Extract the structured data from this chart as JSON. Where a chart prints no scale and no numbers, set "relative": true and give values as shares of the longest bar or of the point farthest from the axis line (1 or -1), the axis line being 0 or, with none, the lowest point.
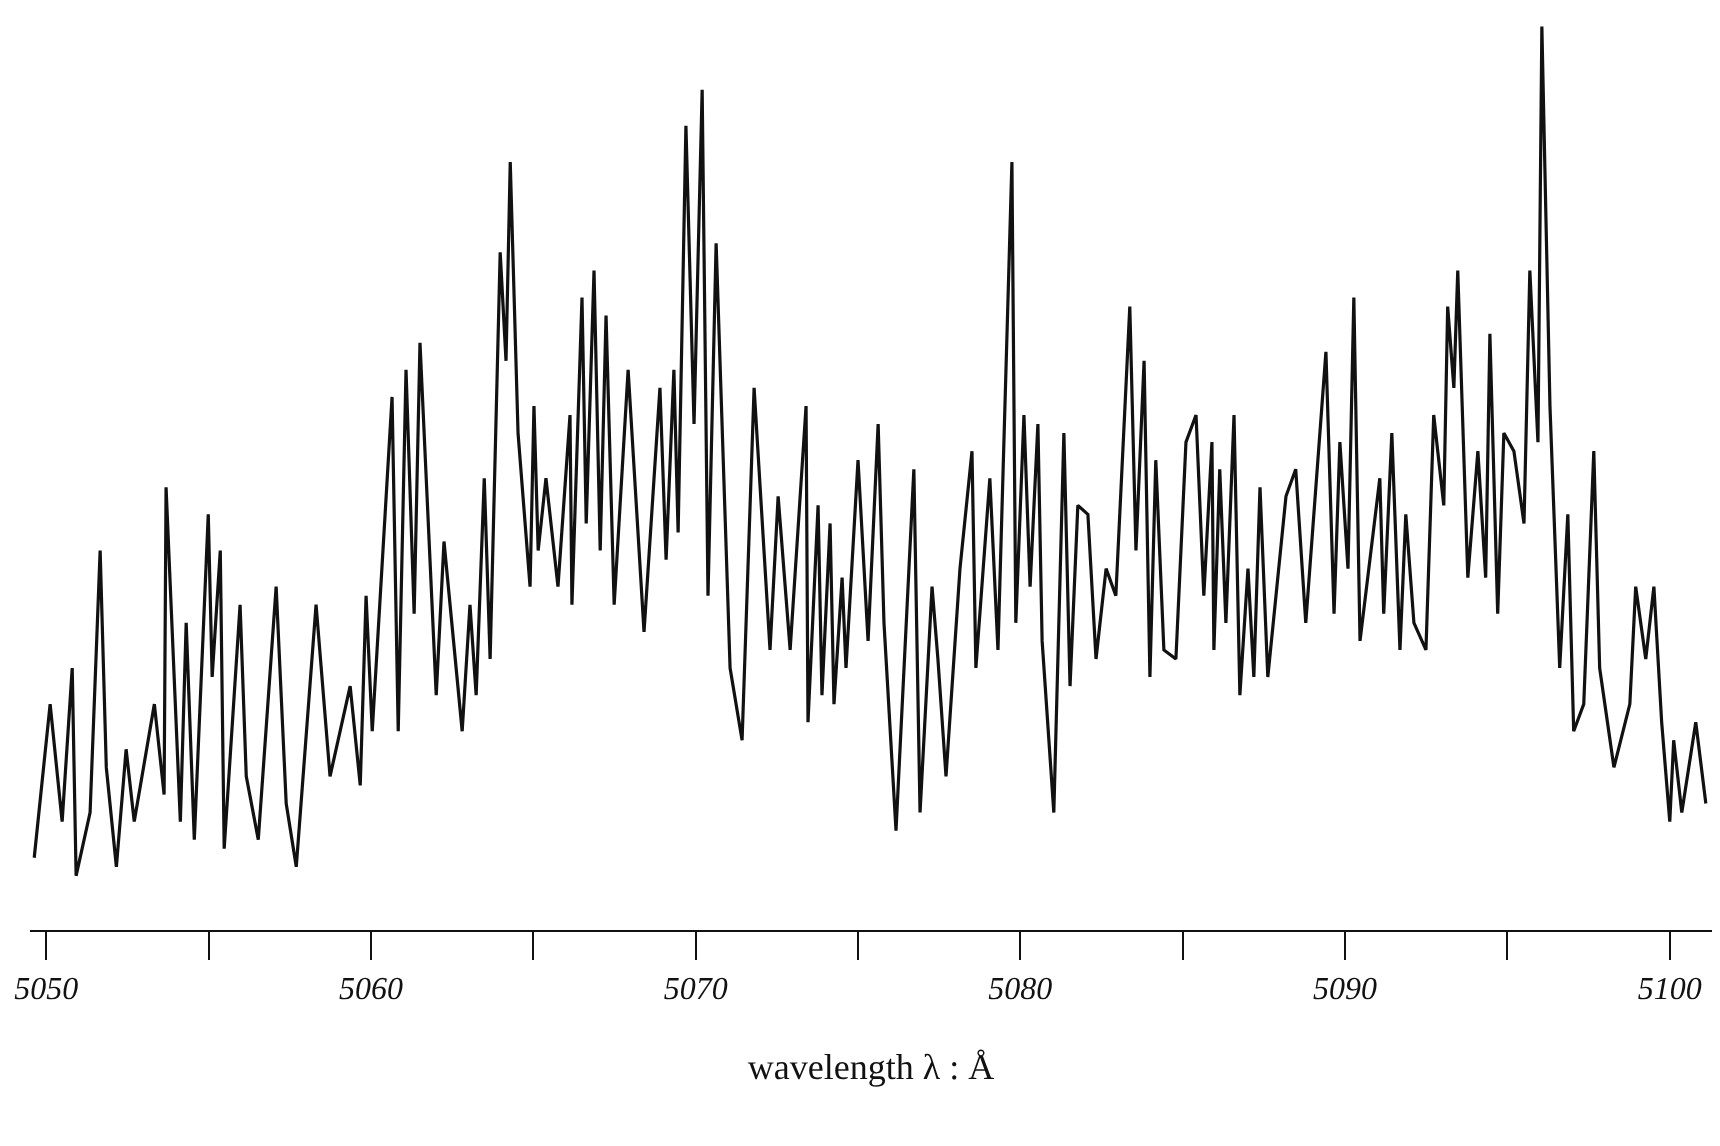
{
  "chart_data": {
    "type": "line",
    "relative": true,
    "xlabel": "wavelength λ : Å",
    "xlim": [
      5049.5,
      5101.3
    ],
    "xticks": [
      5050,
      {
        "value": 5055,
        "label": null
      },
      5060,
      {
        "value": 5065,
        "label": null
      },
      5070,
      {
        "value": 5075,
        "label": null
      },
      5080,
      {
        "value": 5085,
        "label": null
      },
      5090,
      {
        "value": 5095,
        "label": null
      },
      5100
    ],
    "marker": "none",
    "line_style": "solid",
    "series": [
      {
        "color": "#111111",
        "x": [
          5049.63,
          5050.12,
          5050.49,
          5050.8,
          5050.92,
          5051.35,
          5051.66,
          5051.85,
          5052.16,
          5052.46,
          5052.71,
          5053.33,
          5053.63,
          5053.69,
          5054.13,
          5054.31,
          5054.56,
          5054.99,
          5055.11,
          5055.36,
          5055.48,
          5055.97,
          5056.16,
          5056.53,
          5057.08,
          5057.39,
          5057.7,
          5058.31,
          5058.74,
          5059.36,
          5059.67,
          5059.85,
          5060.04,
          5060.65,
          5060.84,
          5061.08,
          5061.33,
          5061.51,
          5062.01,
          5062.25,
          5062.81,
          5063.05,
          5063.24,
          5063.49,
          5063.67,
          5063.98,
          5064.16,
          5064.29,
          5064.53,
          5064.9,
          5065.02,
          5065.15,
          5065.39,
          5065.76,
          5066.13,
          5066.19,
          5066.5,
          5066.63,
          5066.87,
          5067.06,
          5067.24,
          5067.49,
          5067.92,
          5068.41,
          5068.9,
          5069.09,
          5069.33,
          5069.46,
          5069.7,
          5069.95,
          5070.2,
          5070.38,
          5070.63,
          5071.06,
          5071.43,
          5071.8,
          5072.29,
          5072.54,
          5072.91,
          5073.4,
          5073.46,
          5073.77,
          5073.89,
          5074.14,
          5074.26,
          5074.51,
          5074.63,
          5075.0,
          5075.31,
          5075.62,
          5075.8,
          5076.17,
          5076.72,
          5076.91,
          5077.28,
          5077.46,
          5077.71,
          5078.14,
          5078.51,
          5078.63,
          5079.06,
          5079.31,
          5079.74,
          5079.86,
          5080.11,
          5080.3,
          5080.54,
          5080.67,
          5081.03,
          5081.34,
          5081.53,
          5081.77,
          5082.08,
          5082.33,
          5082.64,
          5082.94,
          5083.37,
          5083.56,
          5083.81,
          5083.99,
          5084.17,
          5084.42,
          5084.79,
          5085.1,
          5085.41,
          5085.65,
          5085.9,
          5085.96,
          5086.14,
          5086.33,
          5086.58,
          5086.76,
          5087.01,
          5087.19,
          5087.38,
          5087.62,
          5088.18,
          5088.48,
          5088.79,
          5089.41,
          5089.66,
          5089.84,
          5090.09,
          5090.27,
          5090.46,
          5091.07,
          5091.19,
          5091.44,
          5091.69,
          5091.87,
          5092.12,
          5092.49,
          5092.73,
          5093.04,
          5093.16,
          5093.35,
          5093.47,
          5093.78,
          5094.09,
          5094.33,
          5094.46,
          5094.7,
          5094.89,
          5095.2,
          5095.51,
          5095.69,
          5095.94,
          5096.06,
          5096.31,
          5096.61,
          5096.86,
          5097.04,
          5097.35,
          5097.66,
          5097.84,
          5098.28,
          5098.77,
          5098.95,
          5099.26,
          5099.51,
          5099.75,
          5100.0,
          5100.12,
          5100.37,
          5100.8,
          5101.11
        ],
        "values": [
          0.08,
          0.25,
          0.12,
          0.29,
          0.06,
          0.13,
          0.42,
          0.18,
          0.07,
          0.2,
          0.12,
          0.25,
          0.15,
          0.49,
          0.12,
          0.34,
          0.1,
          0.46,
          0.28,
          0.42,
          0.09,
          0.36,
          0.17,
          0.1,
          0.38,
          0.14,
          0.07,
          0.36,
          0.17,
          0.27,
          0.16,
          0.37,
          0.22,
          0.59,
          0.22,
          0.62,
          0.35,
          0.65,
          0.26,
          0.43,
          0.22,
          0.36,
          0.26,
          0.5,
          0.3,
          0.75,
          0.63,
          0.85,
          0.55,
          0.38,
          0.58,
          0.42,
          0.5,
          0.38,
          0.57,
          0.36,
          0.7,
          0.45,
          0.73,
          0.42,
          0.68,
          0.36,
          0.62,
          0.33,
          0.6,
          0.41,
          0.62,
          0.44,
          0.89,
          0.56,
          0.93,
          0.37,
          0.76,
          0.29,
          0.21,
          0.6,
          0.31,
          0.48,
          0.31,
          0.58,
          0.23,
          0.47,
          0.26,
          0.45,
          0.25,
          0.39,
          0.29,
          0.52,
          0.32,
          0.56,
          0.34,
          0.11,
          0.51,
          0.13,
          0.38,
          0.3,
          0.17,
          0.4,
          0.53,
          0.29,
          0.5,
          0.31,
          0.85,
          0.34,
          0.57,
          0.38,
          0.56,
          0.32,
          0.13,
          0.55,
          0.27,
          0.47,
          0.46,
          0.3,
          0.4,
          0.37,
          0.69,
          0.42,
          0.63,
          0.28,
          0.52,
          0.31,
          0.3,
          0.54,
          0.57,
          0.37,
          0.54,
          0.31,
          0.51,
          0.34,
          0.57,
          0.26,
          0.4,
          0.28,
          0.49,
          0.28,
          0.48,
          0.51,
          0.34,
          0.64,
          0.35,
          0.54,
          0.4,
          0.7,
          0.32,
          0.5,
          0.35,
          0.55,
          0.31,
          0.46,
          0.34,
          0.31,
          0.57,
          0.47,
          0.69,
          0.6,
          0.73,
          0.39,
          0.53,
          0.39,
          0.66,
          0.35,
          0.55,
          0.53,
          0.45,
          0.73,
          0.54,
          1.0,
          0.58,
          0.29,
          0.46,
          0.22,
          0.25,
          0.53,
          0.29,
          0.18,
          0.25,
          0.38,
          0.3,
          0.38,
          0.23,
          0.12,
          0.21,
          0.13,
          0.23,
          0.14
        ]
      }
    ]
  }
}
